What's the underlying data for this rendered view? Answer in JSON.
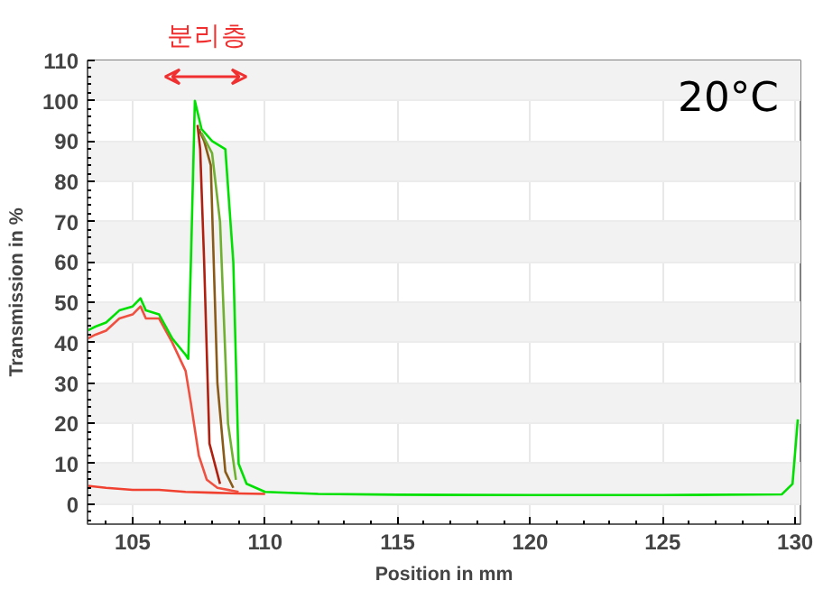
{
  "chart_data": {
    "type": "line",
    "xlabel": "Position in mm",
    "ylabel": "Transmission in %",
    "xlim": [
      103.3,
      130.2
    ],
    "ylim": [
      -5,
      110
    ],
    "xticks": [
      105,
      110,
      115,
      120,
      125,
      130
    ],
    "yticks": [
      0,
      10,
      20,
      30,
      40,
      50,
      60,
      70,
      80,
      90,
      100,
      110
    ],
    "grid": true,
    "marker": "none",
    "line_style": "solid",
    "annotations": [
      "분리층",
      "20°C"
    ],
    "series": [
      {
        "color": "#f04030",
        "x": [
          103.3,
          104.0,
          105.0,
          106.0,
          107.0,
          108.0,
          109.0,
          110.0
        ],
        "values": [
          4.5,
          4,
          3.5,
          3.5,
          3,
          2.8,
          2.6,
          2.5
        ]
      },
      {
        "color": "#f05040",
        "x": [
          103.3,
          103.6,
          104.0,
          104.5,
          105.0,
          105.3,
          105.5,
          106.0,
          106.5,
          107.0,
          107.2,
          107.5,
          107.8,
          108.2,
          109.0
        ],
        "values": [
          41,
          42,
          43,
          46,
          47,
          49,
          46,
          46,
          40,
          33,
          25,
          12,
          6,
          4,
          3
        ]
      },
      {
        "color": "#b02010",
        "x": [
          107.45,
          107.55,
          107.7,
          107.9,
          108.3
        ],
        "values": [
          94,
          88,
          60,
          15,
          5
        ]
      },
      {
        "color": "#8a5a18",
        "x": [
          107.5,
          107.7,
          107.95,
          108.2,
          108.5,
          108.8
        ],
        "values": [
          93,
          90,
          84,
          30,
          8,
          4
        ]
      },
      {
        "color": "#70b030",
        "x": [
          107.6,
          108.0,
          108.3,
          108.6,
          108.9
        ],
        "values": [
          92,
          87,
          70,
          20,
          6
        ]
      },
      {
        "color": "#00e000",
        "x": [
          103.3,
          103.6,
          104.0,
          104.5,
          105.0,
          105.3,
          105.5,
          106.0,
          106.5,
          107.0,
          107.1,
          107.2,
          107.35,
          107.6,
          108.0,
          108.5,
          108.8,
          109.0,
          109.3,
          110.0,
          112.0,
          115.0,
          120.0,
          125.0,
          129.5,
          129.9,
          130.1
        ],
        "values": [
          43,
          44,
          45,
          48,
          49,
          51,
          48,
          47,
          41,
          37,
          36,
          60,
          100,
          93,
          90,
          88,
          60,
          10,
          5,
          3,
          2.5,
          2.3,
          2.2,
          2.2,
          2.4,
          5,
          21
        ]
      }
    ]
  }
}
